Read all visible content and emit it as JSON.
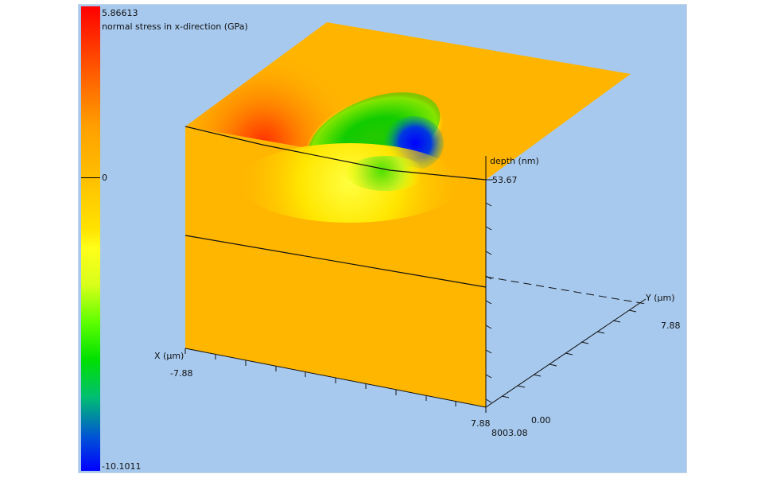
{
  "colorbar": {
    "max": "5.86613",
    "zero": "0",
    "min": "-10.1011",
    "title": "normal stress in x-direction (GPa)"
  },
  "axes": {
    "depth": {
      "label": "depth (nm)",
      "value": "53.67",
      "bottom": "8003.08"
    },
    "x": {
      "label": "X (µm)",
      "min": "-7.88",
      "max": "7.88"
    },
    "y": {
      "label": "Y (µm)",
      "min": "0.00",
      "max": "7.88"
    }
  },
  "colors": {
    "background": "#a7c9ee",
    "compressive": "#0000ff",
    "tensile": "#ff0000",
    "neutral": "#ffbf00"
  }
}
